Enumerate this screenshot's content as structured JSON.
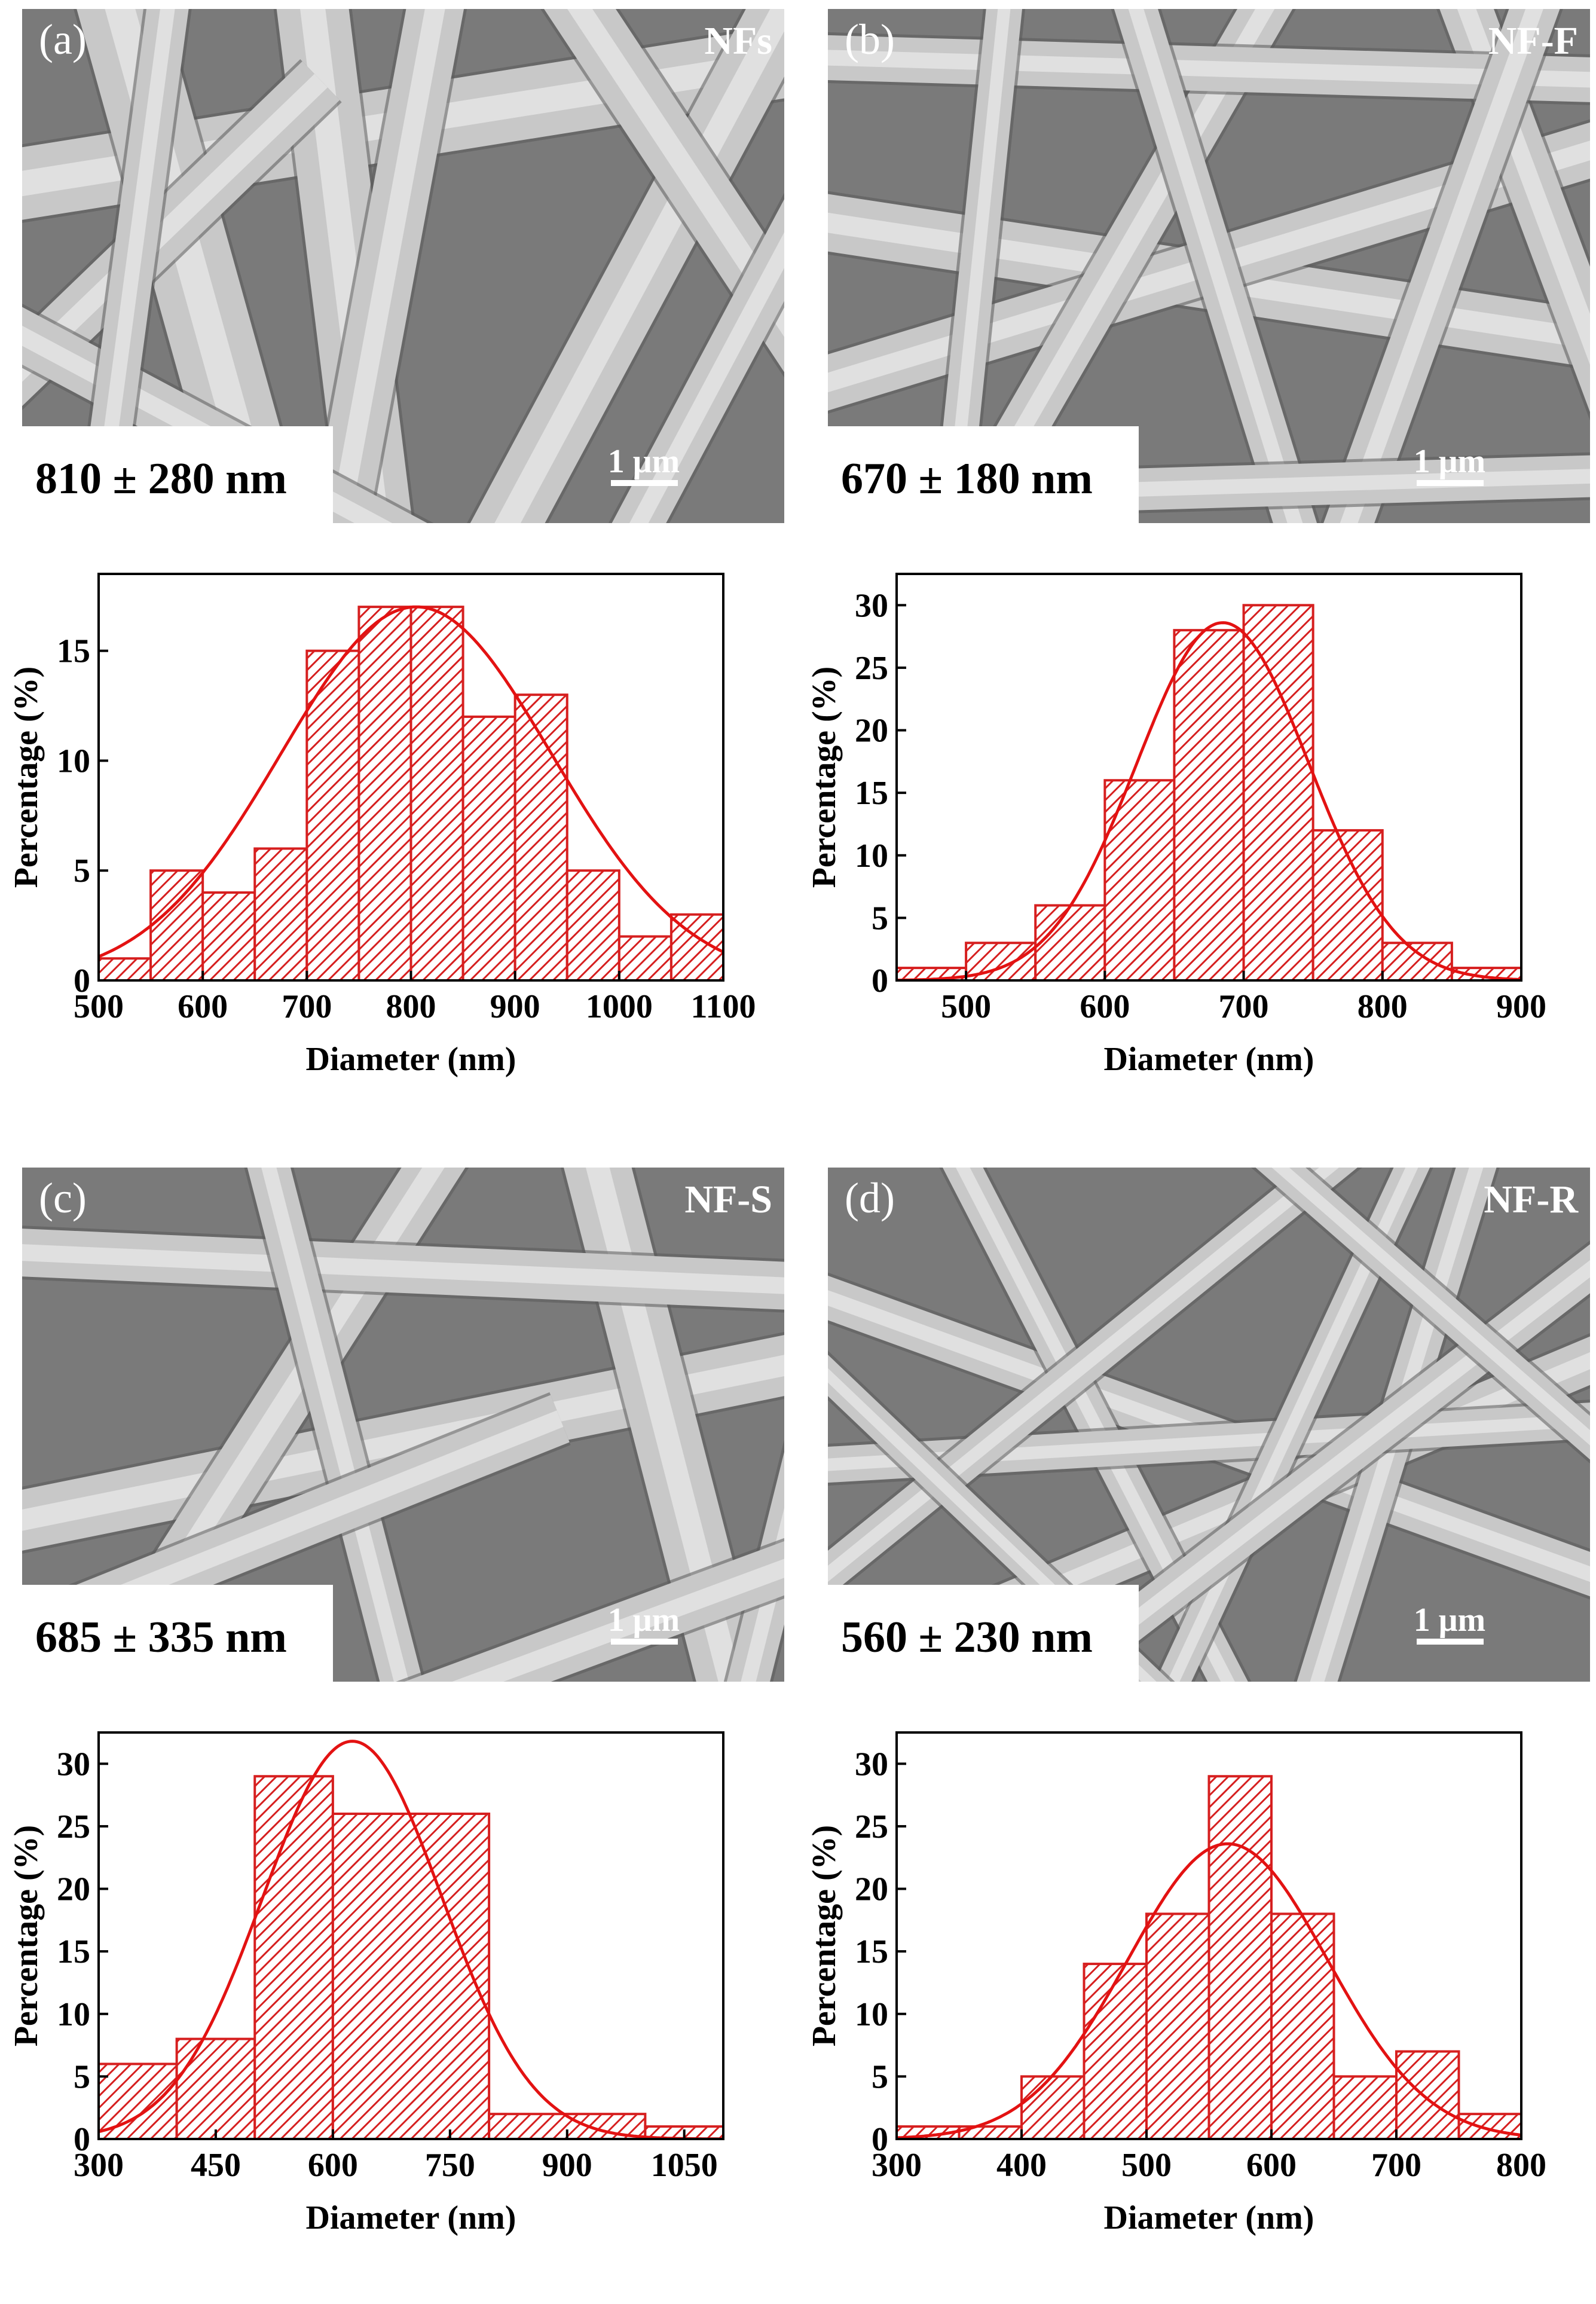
{
  "colors": {
    "bar_fill": "#d61f1f",
    "bar_stroke": "#d61f1f",
    "fit_curve": "#e31212",
    "axis": "#000000",
    "sem_background": "#8e8e8e",
    "sem_fiber": "#cfcfcf",
    "sem_label": "#ffffff",
    "size_box_background": "#ffffff",
    "size_box_text": "#000000"
  },
  "panels": [
    {
      "id": "a",
      "panel_label": "(a)",
      "sample_name": "NFs",
      "mean_diameter": "810 ± 280 nm",
      "scale_bar": "1 μm"
    },
    {
      "id": "b",
      "panel_label": "(b)",
      "sample_name": "NF-F",
      "mean_diameter": "670 ± 180 nm",
      "scale_bar": "1 μm"
    },
    {
      "id": "c",
      "panel_label": "(c)",
      "sample_name": "NF-S",
      "mean_diameter": "685 ± 335 nm",
      "scale_bar": "1 μm"
    },
    {
      "id": "d",
      "panel_label": "(d)",
      "sample_name": "NF-R",
      "mean_diameter": "560 ± 230 nm",
      "scale_bar": "1 μm"
    }
  ],
  "chart_data": [
    {
      "type": "bar",
      "subtype": "histogram",
      "xlabel": "Diameter (nm)",
      "ylabel": "Percentage (%)",
      "xlim": [
        500,
        1100
      ],
      "ylim": [
        0,
        18.5
      ],
      "xticks": [
        500,
        600,
        700,
        800,
        900,
        1000,
        1100
      ],
      "yticks": [
        0,
        5,
        10,
        15
      ],
      "bin_edges": [
        500,
        550,
        600,
        650,
        700,
        750,
        800,
        850,
        900,
        950,
        1000,
        1050,
        1100
      ],
      "values": [
        1,
        5,
        4,
        6,
        15,
        17,
        17,
        12,
        13,
        5,
        2,
        3
      ],
      "fit": {
        "type": "gaussian",
        "mean": 805,
        "sigma": 130,
        "peak": 17
      }
    },
    {
      "type": "bar",
      "subtype": "histogram",
      "xlabel": "Diameter (nm)",
      "ylabel": "Percentage (%)",
      "xlim": [
        450,
        900
      ],
      "ylim": [
        0,
        32.5
      ],
      "xticks": [
        500,
        600,
        700,
        800,
        900
      ],
      "yticks": [
        0,
        5,
        10,
        15,
        20,
        25,
        30
      ],
      "bin_edges": [
        450,
        500,
        550,
        600,
        650,
        700,
        750,
        800,
        850,
        900
      ],
      "values": [
        1,
        3,
        6,
        16,
        28,
        30,
        12,
        3,
        1
      ],
      "fit": {
        "type": "gaussian",
        "mean": 685,
        "sigma": 62,
        "peak": 28.6
      }
    },
    {
      "type": "bar",
      "subtype": "histogram",
      "xlabel": "Diameter (nm)",
      "ylabel": "Percentage (%)",
      "xlim": [
        300,
        1100
      ],
      "ylim": [
        0,
        32.5
      ],
      "xticks": [
        300,
        450,
        600,
        750,
        900,
        1050
      ],
      "yticks": [
        0,
        5,
        10,
        15,
        20,
        25,
        30
      ],
      "bin_edges": [
        300,
        400,
        500,
        600,
        800,
        1000,
        1100
      ],
      "values": [
        6,
        8,
        29,
        26,
        2,
        1
      ],
      "fit": {
        "type": "gaussian",
        "mean": 625,
        "sigma": 115,
        "peak": 31.8
      }
    },
    {
      "type": "bar",
      "subtype": "histogram",
      "xlabel": "Diameter (nm)",
      "ylabel": "Percentage (%)",
      "xlim": [
        300,
        800
      ],
      "ylim": [
        0,
        32.5
      ],
      "xticks": [
        300,
        400,
        500,
        600,
        700,
        800
      ],
      "yticks": [
        0,
        5,
        10,
        15,
        20,
        25,
        30
      ],
      "bin_edges": [
        300,
        350,
        400,
        450,
        500,
        550,
        600,
        650,
        700,
        750,
        800
      ],
      "values": [
        1,
        1,
        5,
        14,
        18,
        29,
        18,
        5,
        7,
        2
      ],
      "fit": {
        "type": "gaussian",
        "mean": 565,
        "sigma": 80,
        "peak": 23.6
      }
    }
  ]
}
